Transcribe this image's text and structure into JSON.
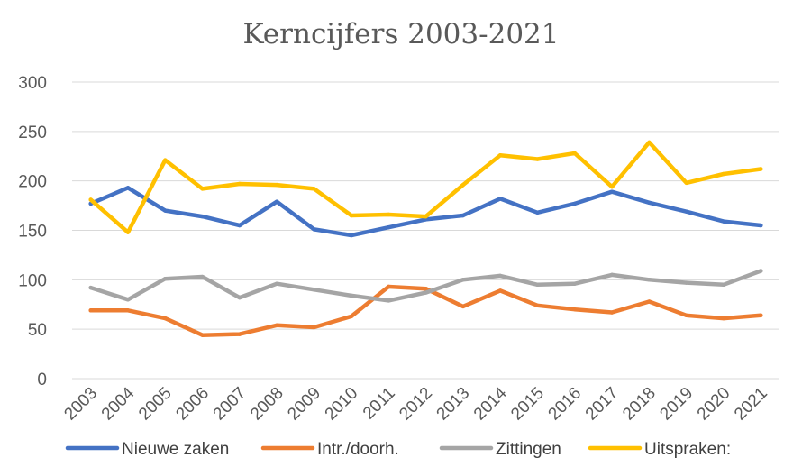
{
  "chart_data": {
    "type": "line",
    "title": "Kerncijfers 2003-2021",
    "xlabel": "",
    "ylabel": "",
    "ylim": [
      0,
      300
    ],
    "yticks": [
      "0",
      "50",
      "100",
      "150",
      "200",
      "250",
      "300"
    ],
    "categories": [
      "2003",
      "2004",
      "2005",
      "2006",
      "2007",
      "2008",
      "2009",
      "2010",
      "2011",
      "2012",
      "2013",
      "2014",
      "2015",
      "2016",
      "2017",
      "2018",
      "2019",
      "2020",
      "2021"
    ],
    "grid": true,
    "legend_position": "bottom",
    "series": [
      {
        "name": "Nieuwe zaken",
        "color": "#4472C4",
        "values": [
          177,
          193,
          170,
          164,
          155,
          179,
          151,
          145,
          153,
          161,
          165,
          182,
          168,
          177,
          189,
          178,
          169,
          159,
          155
        ]
      },
      {
        "name": "Intr./doorh.",
        "color": "#ED7D31",
        "values": [
          69,
          69,
          61,
          44,
          45,
          54,
          52,
          63,
          93,
          91,
          73,
          89,
          74,
          70,
          67,
          78,
          64,
          61,
          64
        ]
      },
      {
        "name": "Zittingen",
        "color": "#A5A5A5",
        "values": [
          92,
          80,
          101,
          103,
          82,
          96,
          90,
          84,
          79,
          87,
          100,
          104,
          95,
          96,
          105,
          100,
          97,
          95,
          109
        ]
      },
      {
        "name": "Uitspraken:",
        "color": "#FFC000",
        "values": [
          181,
          148,
          221,
          192,
          197,
          196,
          192,
          165,
          166,
          164,
          196,
          226,
          222,
          228,
          194,
          239,
          198,
          207,
          212
        ]
      }
    ]
  }
}
